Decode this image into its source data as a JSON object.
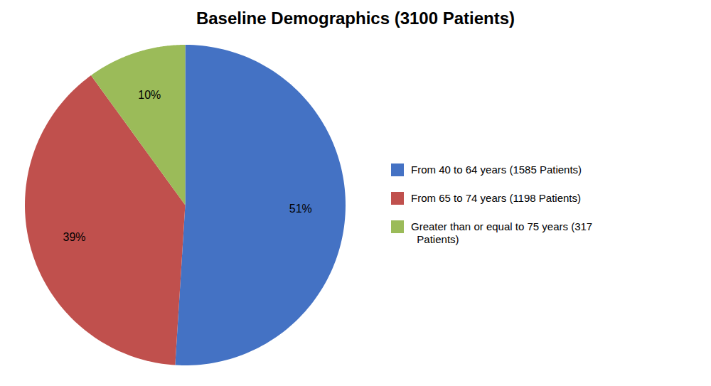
{
  "chart_data": {
    "type": "pie",
    "title": "Baseline Demographics (3100 Patients)",
    "categories": [
      "From 40 to 64 years (1585 Patients)",
      "From 65 to 74 years (1198 Patients)",
      "Greater than or equal to 75 years (317\n  Patients)"
    ],
    "values": [
      51,
      39,
      10
    ],
    "value_labels": [
      "51%",
      "39%",
      "10%"
    ],
    "colors": [
      "#4472C4",
      "#C0504D",
      "#9BBB59"
    ],
    "data_labels": true,
    "legend": "right"
  }
}
